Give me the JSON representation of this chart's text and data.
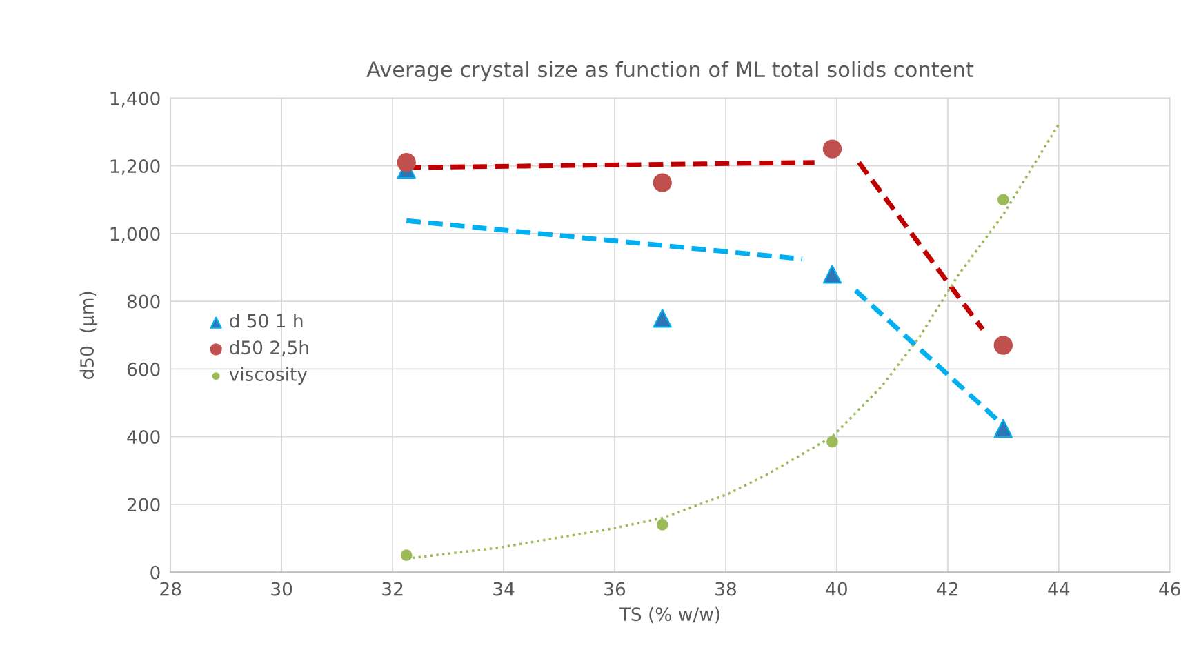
{
  "chart_data": {
    "type": "scatter",
    "title": "Average crystal size as function of ML total solids content",
    "xlabel": "TS (% w/w)",
    "ylabel": "d50  (µm)",
    "xlim": [
      28,
      46
    ],
    "xticks": [
      28,
      30,
      32,
      34,
      36,
      38,
      40,
      42,
      44,
      46
    ],
    "ylim": [
      0,
      1400
    ],
    "yticks": [
      0,
      200,
      400,
      600,
      800,
      {
        "value": 1000,
        "label": "1,000"
      },
      {
        "value": 1200,
        "label": "1,200"
      },
      {
        "value": 1400,
        "label": "1,400"
      }
    ],
    "grid": true,
    "legend": "left",
    "series": [
      {
        "name": "d 50 1 h",
        "marker": "triangle",
        "color": "#2e75b6",
        "x": [
          32.25,
          36.86,
          39.92,
          43.0
        ],
        "values": [
          1190,
          750,
          880,
          425
        ]
      },
      {
        "name": "d50 2,5h",
        "marker": "circle",
        "color": "#c0504d",
        "x": [
          32.25,
          36.86,
          39.92,
          43.0
        ],
        "values": [
          1210,
          1150,
          1250,
          670
        ]
      },
      {
        "name": "viscosity",
        "marker": "circle",
        "color": "#9bbb59",
        "x": [
          32.25,
          36.86,
          39.92,
          43.0
        ],
        "values": [
          50,
          140,
          385,
          1100
        ]
      },
      {
        "type": "line",
        "line_style": "dashed",
        "color": "#c00000",
        "x": [
          32.25,
          39.6
        ],
        "values": [
          1195,
          1210
        ]
      },
      {
        "type": "line",
        "line_style": "dashed",
        "color": "#c00000",
        "x": [
          40.4,
          42.63
        ],
        "values": [
          1210,
          717
        ]
      },
      {
        "type": "line",
        "line_style": "dashed",
        "color": "#00b0f0",
        "x": [
          32.25,
          39.38
        ],
        "values": [
          1038,
          925
        ]
      },
      {
        "type": "line",
        "line_style": "dashed",
        "color": "#00b0f0",
        "x": [
          40.34,
          43.0
        ],
        "values": [
          832,
          434
        ]
      },
      {
        "type": "line",
        "line_style": "dotted",
        "color": "#9bbb59",
        "x": [
          32.25,
          33.9,
          35.97,
          36.86,
          38.04,
          38.73,
          39.92,
          40.8,
          41.49,
          42.18,
          43.0,
          44.0
        ],
        "values": [
          40,
          72,
          129,
          160,
          231,
          287,
          400,
          547,
          694,
          875,
          1056,
          1323
        ]
      }
    ]
  }
}
